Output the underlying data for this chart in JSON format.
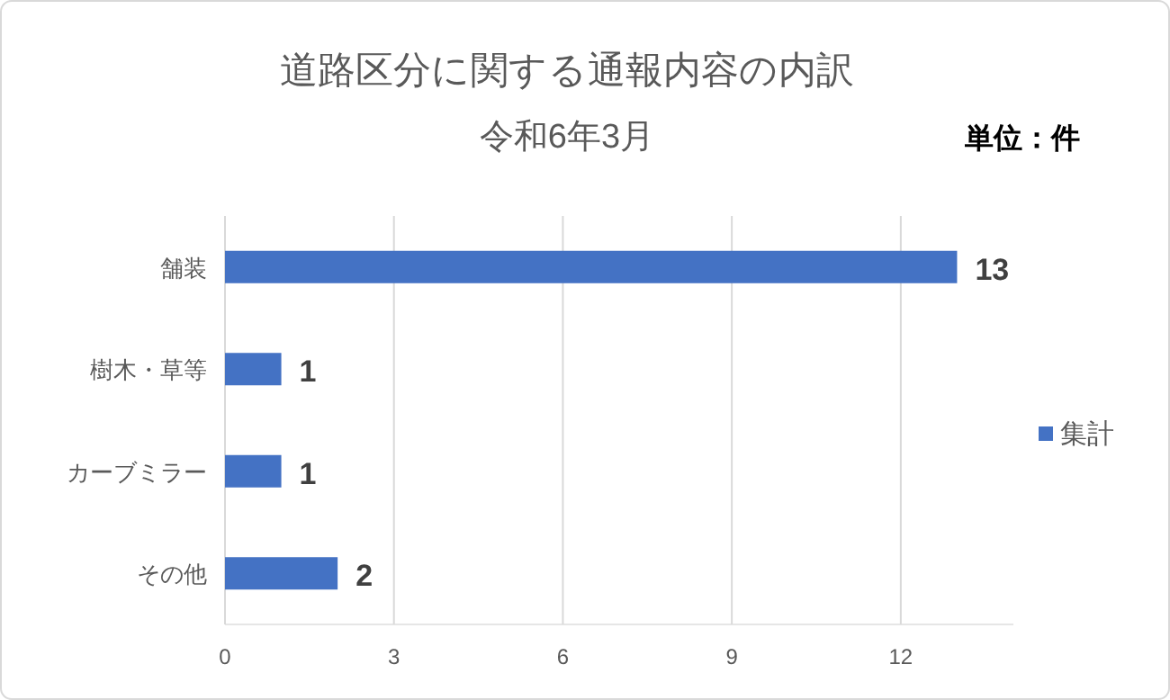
{
  "chart_data": {
    "type": "bar",
    "orientation": "horizontal",
    "title": "道路区分に関する通報内容の内訳",
    "subtitle": "令和6年3月",
    "annotations": [
      "単位：件"
    ],
    "categories": [
      "舗装",
      "樹木・草等",
      "カーブミラー",
      "その他"
    ],
    "series": [
      {
        "name": "集計",
        "color": "#4472c4",
        "values": [
          13,
          1,
          1,
          2
        ]
      }
    ],
    "xlim": [
      0,
      14
    ],
    "xticks": [
      0,
      3,
      6,
      9,
      12
    ],
    "grid": "x",
    "legend": "right",
    "data_labels": true
  }
}
